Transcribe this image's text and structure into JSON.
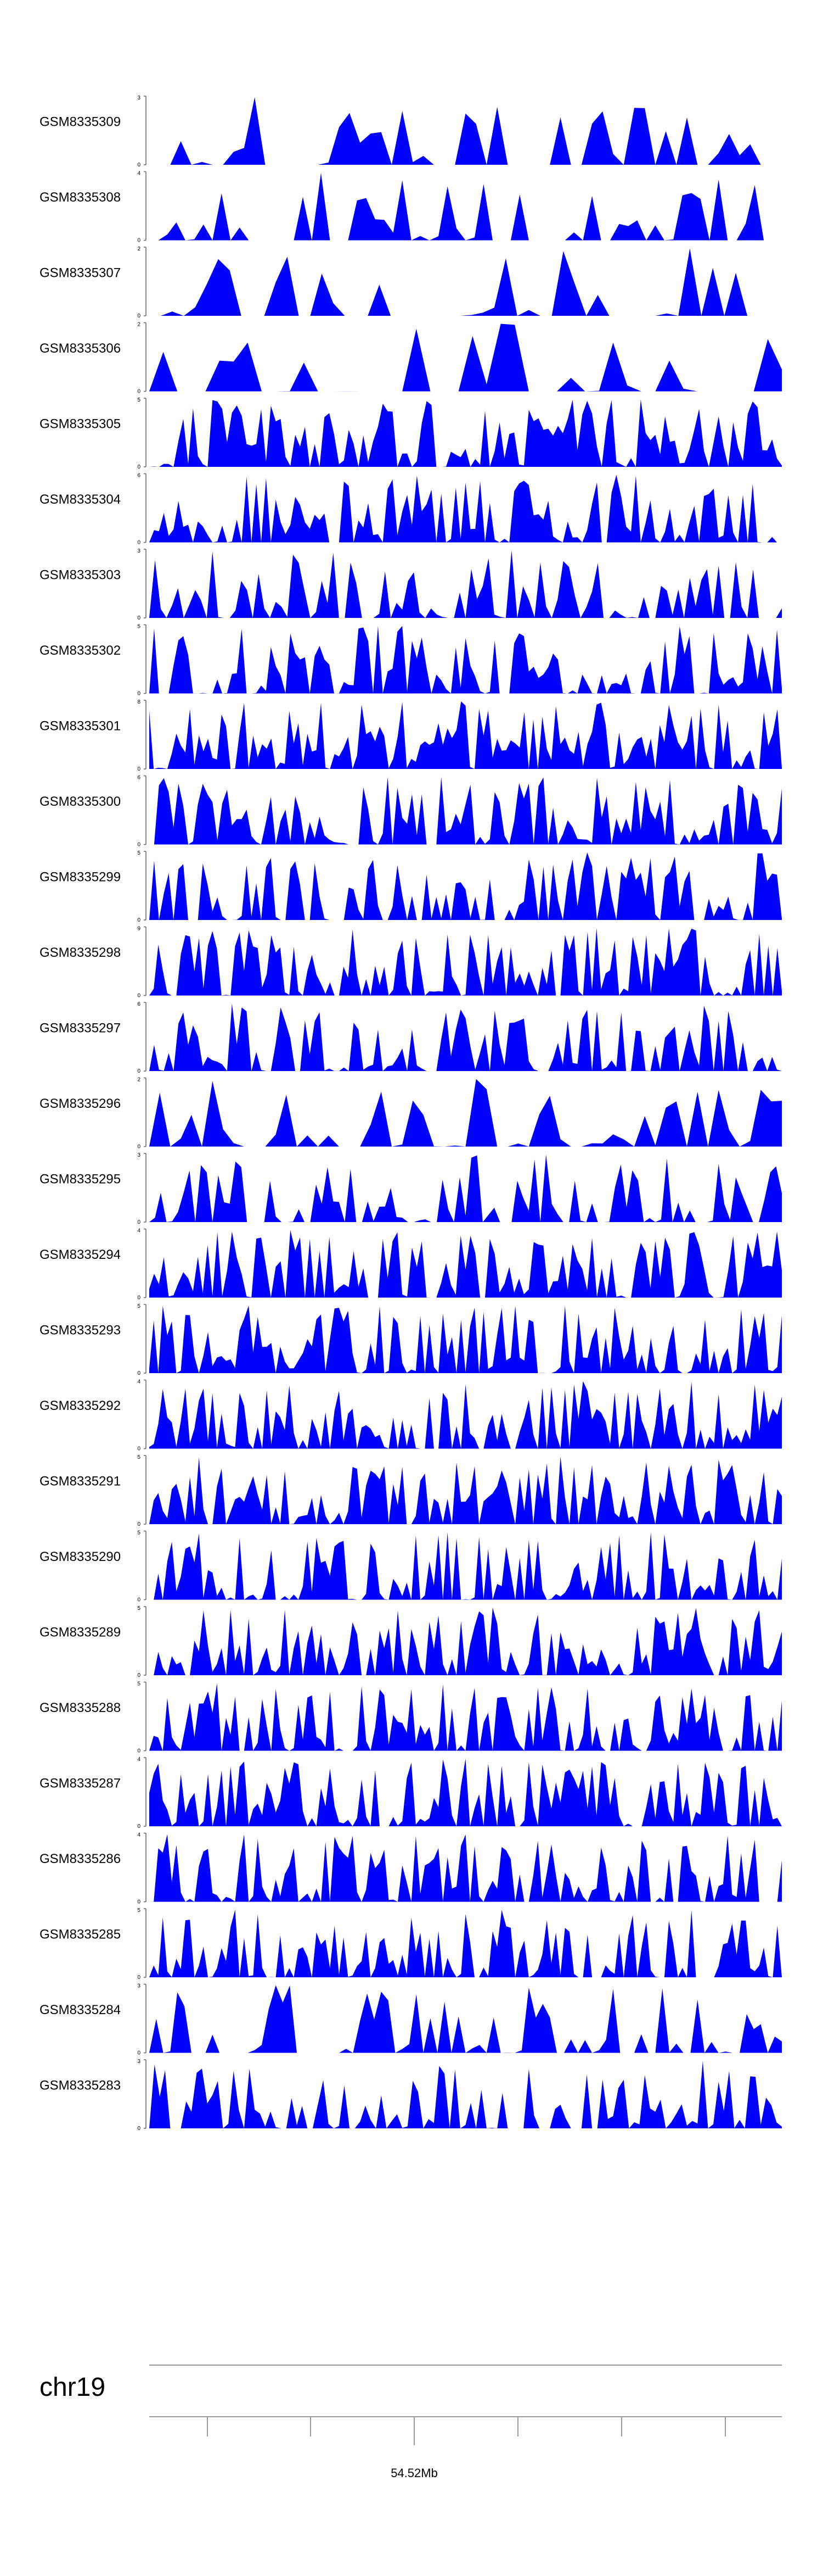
{
  "chart_data": {
    "type": "area",
    "color": "#0000ff",
    "tracks": [
      {
        "name": "GSM8335309",
        "ymax": "3",
        "ymin": "0",
        "ylim": [
          0,
          3
        ],
        "seed": 9309,
        "bins": 60,
        "density": 0.45
      },
      {
        "name": "GSM8335308",
        "ymax": "4",
        "ymin": "0",
        "ylim": [
          0,
          4
        ],
        "seed": 9308,
        "bins": 70,
        "density": 0.45
      },
      {
        "name": "GSM8335307",
        "ymax": "2",
        "ymin": "0",
        "ylim": [
          0,
          2
        ],
        "seed": 9307,
        "bins": 55,
        "density": 0.45
      },
      {
        "name": "GSM8335306",
        "ymax": "2",
        "ymin": "0",
        "ylim": [
          0,
          2
        ],
        "seed": 9306,
        "bins": 45,
        "density": 0.5
      },
      {
        "name": "GSM8335305",
        "ymax": "5",
        "ymin": "0",
        "ylim": [
          0,
          5
        ],
        "seed": 9305,
        "bins": 130,
        "density": 0.8
      },
      {
        "name": "GSM8335304",
        "ymax": "6",
        "ymin": "0",
        "ylim": [
          0,
          6
        ],
        "seed": 9304,
        "bins": 130,
        "density": 0.8
      },
      {
        "name": "GSM8335303",
        "ymax": "3",
        "ymin": "0",
        "ylim": [
          0,
          3
        ],
        "seed": 9303,
        "bins": 110,
        "density": 0.65
      },
      {
        "name": "GSM8335302",
        "ymax": "5",
        "ymin": "0",
        "ylim": [
          0,
          5
        ],
        "seed": 9302,
        "bins": 130,
        "density": 0.8
      },
      {
        "name": "GSM8335301",
        "ymax": "8",
        "ymin": "0",
        "ylim": [
          0,
          8
        ],
        "seed": 9301,
        "bins": 140,
        "density": 0.85
      },
      {
        "name": "GSM8335300",
        "ymax": "6",
        "ymin": "0",
        "ylim": [
          0,
          6
        ],
        "seed": 9300,
        "bins": 130,
        "density": 0.8
      },
      {
        "name": "GSM8335299",
        "ymax": "5",
        "ymin": "0",
        "ylim": [
          0,
          5
        ],
        "seed": 9299,
        "bins": 130,
        "density": 0.8
      },
      {
        "name": "GSM8335298",
        "ymax": "9",
        "ymin": "0",
        "ylim": [
          0,
          9
        ],
        "seed": 9298,
        "bins": 140,
        "density": 0.8
      },
      {
        "name": "GSM8335297",
        "ymax": "6",
        "ymin": "0",
        "ylim": [
          0,
          6
        ],
        "seed": 9297,
        "bins": 130,
        "density": 0.8
      },
      {
        "name": "GSM8335296",
        "ymax": "2",
        "ymin": "0",
        "ylim": [
          0,
          2
        ],
        "seed": 9296,
        "bins": 60,
        "density": 0.55
      },
      {
        "name": "GSM8335295",
        "ymax": "3",
        "ymin": "0",
        "ylim": [
          0,
          3
        ],
        "seed": 9295,
        "bins": 110,
        "density": 0.65
      },
      {
        "name": "GSM8335294",
        "ymax": "4",
        "ymin": "0",
        "ylim": [
          0,
          4
        ],
        "seed": 9294,
        "bins": 130,
        "density": 0.85
      },
      {
        "name": "GSM8335293",
        "ymax": "5",
        "ymin": "0",
        "ylim": [
          0,
          5
        ],
        "seed": 9293,
        "bins": 140,
        "density": 0.85
      },
      {
        "name": "GSM8335292",
        "ymax": "4",
        "ymin": "0",
        "ylim": [
          0,
          4
        ],
        "seed": 9292,
        "bins": 140,
        "density": 0.85
      },
      {
        "name": "GSM8335291",
        "ymax": "5",
        "ymin": "0",
        "ylim": [
          0,
          5
        ],
        "seed": 9291,
        "bins": 140,
        "density": 0.85
      },
      {
        "name": "GSM8335290",
        "ymax": "5",
        "ymin": "0",
        "ylim": [
          0,
          5
        ],
        "seed": 9290,
        "bins": 140,
        "density": 0.8
      },
      {
        "name": "GSM8335289",
        "ymax": "5",
        "ymin": "0",
        "ylim": [
          0,
          5
        ],
        "seed": 9289,
        "bins": 140,
        "density": 0.8
      },
      {
        "name": "GSM8335288",
        "ymax": "5",
        "ymin": "0",
        "ylim": [
          0,
          5
        ],
        "seed": 9288,
        "bins": 140,
        "density": 0.8
      },
      {
        "name": "GSM8335287",
        "ymax": "4",
        "ymin": "0",
        "ylim": [
          0,
          4
        ],
        "seed": 9287,
        "bins": 140,
        "density": 0.85
      },
      {
        "name": "GSM8335286",
        "ymax": "4",
        "ymin": "0",
        "ylim": [
          0,
          4
        ],
        "seed": 9286,
        "bins": 140,
        "density": 0.8
      },
      {
        "name": "GSM8335285",
        "ymax": "5",
        "ymin": "0",
        "ylim": [
          0,
          5
        ],
        "seed": 9285,
        "bins": 140,
        "density": 0.8
      },
      {
        "name": "GSM8335284",
        "ymax": "3",
        "ymin": "0",
        "ylim": [
          0,
          3
        ],
        "seed": 9284,
        "bins": 90,
        "density": 0.55
      },
      {
        "name": "GSM8335283",
        "ymax": "3",
        "ymin": "0",
        "ylim": [
          0,
          3
        ],
        "seed": 9283,
        "bins": 120,
        "density": 0.7
      }
    ],
    "chromosome": "chr19",
    "position_label": "54.52Mb"
  }
}
